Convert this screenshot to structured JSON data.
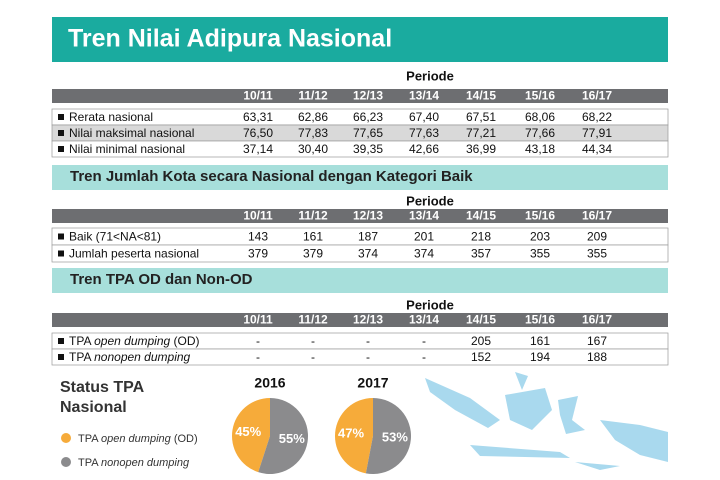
{
  "title": "Tren Nilai Adipura Nasional",
  "sections": [
    {
      "table": {
        "header": "Periode",
        "columns": [
          "10/11",
          "11/12",
          "12/13",
          "13/14",
          "14/15",
          "15/16",
          "16/17"
        ],
        "rows": [
          {
            "label": "Rerata nasional",
            "values": [
              "63,31",
              "62,86",
              "66,23",
              "67,40",
              "67,51",
              "68,06",
              "68,22"
            ]
          },
          {
            "label": "Nilai maksimal nasional",
            "values": [
              "76,50",
              "77,83",
              "77,65",
              "77,63",
              "77,21",
              "77,66",
              "77,91"
            ]
          },
          {
            "label": "Nilai minimal nasional",
            "values": [
              "37,14",
              "30,40",
              "39,35",
              "42,66",
              "36,99",
              "43,18",
              "44,34"
            ]
          }
        ]
      }
    },
    {
      "heading": "Tren Jumlah Kota secara Nasional dengan Kategori Baik",
      "table": {
        "header": "Periode",
        "columns": [
          "10/11",
          "11/12",
          "12/13",
          "13/14",
          "14/15",
          "15/16",
          "16/17"
        ],
        "rows": [
          {
            "label": "Baik (71<NA<81)",
            "values": [
              "143",
              "161",
              "187",
              "201",
              "218",
              "203",
              "209"
            ]
          },
          {
            "label": "Jumlah peserta nasional",
            "values": [
              "379",
              "379",
              "374",
              "374",
              "357",
              "355",
              "355"
            ]
          }
        ]
      }
    },
    {
      "heading": "Tren TPA OD dan Non-OD",
      "table": {
        "header": "Periode",
        "columns": [
          "10/11",
          "11/12",
          "12/13",
          "13/14",
          "14/15",
          "15/16",
          "16/17"
        ],
        "rows": [
          {
            "label": [
              "TPA ",
              "open dumping",
              " (OD)"
            ],
            "values": [
              "-",
              "-",
              "-",
              "-",
              "205",
              "161",
              "167"
            ]
          },
          {
            "label": [
              "TPA ",
              "nonopen dumping"
            ],
            "values": [
              "-",
              "-",
              "-",
              "-",
              "152",
              "194",
              "188"
            ]
          }
        ]
      }
    }
  ],
  "status": {
    "title": "Status TPA Nasional",
    "legend": [
      {
        "label": [
          "TPA ",
          "open dumping",
          " (OD)"
        ],
        "color": "#f6ab3a"
      },
      {
        "label": [
          "TPA ",
          "nonopen dumping"
        ],
        "color": "#8b8b8d"
      }
    ],
    "pies": [
      {
        "title": "2016",
        "values": [
          45,
          55
        ],
        "value_labels": [
          "45%",
          "55%"
        ]
      },
      {
        "title": "2017",
        "values": [
          47,
          53
        ],
        "value_labels": [
          "47%",
          "53%"
        ]
      }
    ]
  }
}
